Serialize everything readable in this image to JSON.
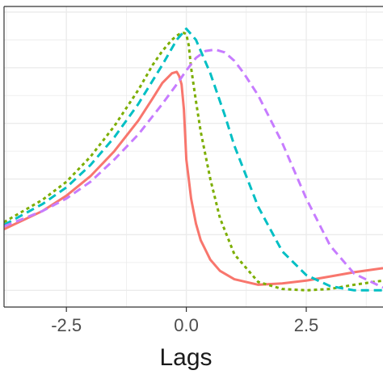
{
  "chart_data": {
    "type": "line",
    "title": "",
    "xlabel": "Lags",
    "ylabel": "",
    "xlim": [
      -3.8,
      4.1
    ],
    "ylim": [
      0.0,
      1.0
    ],
    "x_ticks": [
      -2.5,
      0.0,
      2.5
    ],
    "x_tick_labels": [
      "-2.5",
      "0.0",
      "2.5"
    ],
    "grid": true,
    "legend": "none",
    "series": [
      {
        "color": "#F8766D",
        "line_style": "solid",
        "x": [
          -3.8,
          -3.0,
          -2.5,
          -2.0,
          -1.5,
          -1.0,
          -0.7,
          -0.5,
          -0.3,
          -0.2,
          -0.15,
          -0.1,
          -0.05,
          0.0,
          0.05,
          0.1,
          0.2,
          0.3,
          0.5,
          0.7,
          1.0,
          1.5,
          2.0,
          2.5,
          3.0,
          3.5,
          4.1
        ],
        "y": [
          0.22,
          0.285,
          0.34,
          0.41,
          0.5,
          0.61,
          0.69,
          0.745,
          0.78,
          0.785,
          0.77,
          0.74,
          0.65,
          0.47,
          0.4,
          0.33,
          0.24,
          0.18,
          0.11,
          0.07,
          0.04,
          0.02,
          0.025,
          0.035,
          0.05,
          0.065,
          0.08
        ]
      },
      {
        "color": "#7CAE00",
        "line_style": "dotted",
        "x": [
          -3.8,
          -3.0,
          -2.5,
          -2.0,
          -1.5,
          -1.0,
          -0.7,
          -0.5,
          -0.3,
          -0.2,
          -0.1,
          -0.05,
          0.0,
          0.05,
          0.1,
          0.2,
          0.3,
          0.5,
          0.7,
          1.0,
          1.5,
          2.0,
          2.5,
          3.0,
          3.5,
          4.1
        ],
        "y": [
          0.245,
          0.325,
          0.39,
          0.48,
          0.59,
          0.72,
          0.81,
          0.86,
          0.9,
          0.915,
          0.925,
          0.925,
          0.92,
          0.88,
          0.8,
          0.68,
          0.57,
          0.4,
          0.26,
          0.13,
          0.03,
          0.005,
          0.0,
          0.005,
          0.02,
          0.035
        ]
      },
      {
        "color": "#00BFC4",
        "line_style": "dashed",
        "x": [
          -3.8,
          -3.0,
          -2.5,
          -2.0,
          -1.5,
          -1.0,
          -0.5,
          -0.2,
          0.0,
          0.2,
          0.5,
          0.8,
          1.0,
          1.5,
          2.0,
          2.5,
          3.0,
          3.5,
          4.1
        ],
        "y": [
          0.235,
          0.31,
          0.37,
          0.45,
          0.55,
          0.67,
          0.81,
          0.9,
          0.94,
          0.9,
          0.78,
          0.63,
          0.52,
          0.3,
          0.14,
          0.055,
          0.015,
          0.0,
          0.0
        ]
      },
      {
        "color": "#C77CFF",
        "line_style": "dashed",
        "x": [
          -3.8,
          -3.0,
          -2.5,
          -2.0,
          -1.5,
          -1.0,
          -0.5,
          -0.2,
          0.0,
          0.2,
          0.4,
          0.6,
          0.8,
          1.0,
          1.2,
          1.5,
          2.0,
          2.5,
          3.0,
          3.5,
          4.1
        ],
        "y": [
          0.23,
          0.285,
          0.33,
          0.39,
          0.47,
          0.56,
          0.67,
          0.74,
          0.79,
          0.835,
          0.86,
          0.865,
          0.855,
          0.825,
          0.78,
          0.7,
          0.53,
          0.33,
          0.16,
          0.06,
          0.01
        ]
      }
    ]
  }
}
